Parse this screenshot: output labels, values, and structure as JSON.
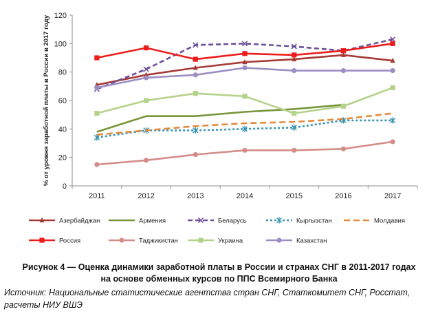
{
  "chart_data": {
    "type": "line",
    "title": "",
    "xlabel": "",
    "ylabel": "% от уровня заработной платы в России в 2017 году",
    "x": [
      "2011",
      "2012",
      "2013",
      "2014",
      "2015",
      "2016",
      "2017"
    ],
    "ylim": [
      0,
      120
    ],
    "yticks": [
      0,
      20,
      40,
      60,
      80,
      100,
      120
    ],
    "grid": false,
    "legend": "bottom",
    "series": [
      {
        "name": "Азербайджан",
        "values": [
          71,
          78,
          83,
          87,
          89,
          92,
          88
        ],
        "color": "#a63a35",
        "dash": "solid",
        "marker": "triangle"
      },
      {
        "name": "Армения",
        "values": [
          38,
          49,
          49,
          52,
          54,
          57,
          null
        ],
        "color": "#77953a",
        "dash": "solid",
        "marker": "none"
      },
      {
        "name": "Беларусь",
        "values": [
          68,
          82,
          99,
          100,
          98,
          95,
          103
        ],
        "color": "#6b4f9a",
        "dash": "dash",
        "marker": "x"
      },
      {
        "name": "Кыргызстан",
        "values": [
          34,
          39,
          39,
          40,
          41,
          46,
          46
        ],
        "color": "#3592b3",
        "dash": "dot",
        "marker": "star"
      },
      {
        "name": "Молдавия",
        "values": [
          36,
          39,
          42,
          44,
          45,
          47,
          51
        ],
        "color": "#e38a3c",
        "dash": "longdash",
        "marker": "none"
      },
      {
        "name": "Россия",
        "values": [
          90,
          97,
          89,
          93,
          92,
          95,
          100
        ],
        "color": "#ee1d1d",
        "dash": "solid",
        "marker": "square"
      },
      {
        "name": "Таджикистан",
        "values": [
          15,
          18,
          22,
          25,
          25,
          26,
          31
        ],
        "color": "#d48c87",
        "dash": "solid",
        "marker": "circle"
      },
      {
        "name": "Украина",
        "values": [
          51,
          60,
          65,
          63,
          51,
          56,
          69
        ],
        "color": "#b5d28a",
        "dash": "solid",
        "marker": "square"
      },
      {
        "name": "Казахстан",
        "values": [
          69,
          76,
          78,
          83,
          81,
          81,
          81
        ],
        "color": "#9b8ec2",
        "dash": "solid",
        "marker": "circle"
      }
    ]
  },
  "caption": {
    "line1": "Рисунок 4 — Оценка динамики заработной платы в России и странах СНГ в 2011-2017 годах",
    "line2": "на основе обменных курсов по ППС Всемирного Банка"
  },
  "source": {
    "line1": "Источник: Национальные статистические агентства стран СНГ, Статкомитет СНГ, Росстат,",
    "line2": "расчеты НИУ ВШЭ"
  }
}
